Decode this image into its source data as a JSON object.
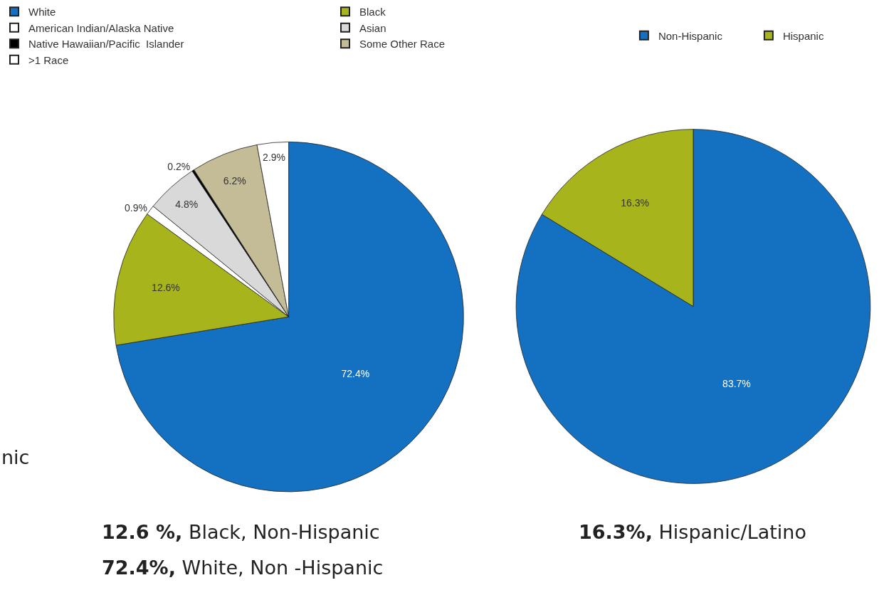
{
  "chart_data": [
    {
      "type": "pie",
      "categories": [
        "White",
        "Black",
        "American Indian/Alaska Native",
        "Asian",
        "Native Hawaiian/Pacific  Islander",
        "Some Other Race",
        ">1 Race"
      ],
      "values": [
        72.4,
        12.6,
        0.9,
        4.8,
        0.2,
        6.2,
        2.9
      ],
      "colors": [
        "#1470c0",
        "#a7b41c",
        "#ffffff",
        "#d9d9d9",
        "#000000",
        "#c4bc96",
        "#ffffff"
      ],
      "value_labels": [
        "72.4%",
        "12.6%",
        "0.9%",
        "4.8%",
        "0.2%",
        "6.2%",
        "2.9%"
      ],
      "legend": "top left",
      "annotations": [
        "nic",
        "12.6 %, Black, Non-Hispanic",
        "72.4%, White, Non -Hispanic"
      ]
    },
    {
      "type": "pie",
      "categories": [
        "Non-Hispanic",
        "Hispanic"
      ],
      "values": [
        83.7,
        16.3
      ],
      "colors": [
        "#1470c0",
        "#a7b41c"
      ],
      "value_labels": [
        "83.7%",
        "16.3%"
      ],
      "legend": "top",
      "annotations": [
        "16.3%, Hispanic/Latino"
      ]
    }
  ]
}
